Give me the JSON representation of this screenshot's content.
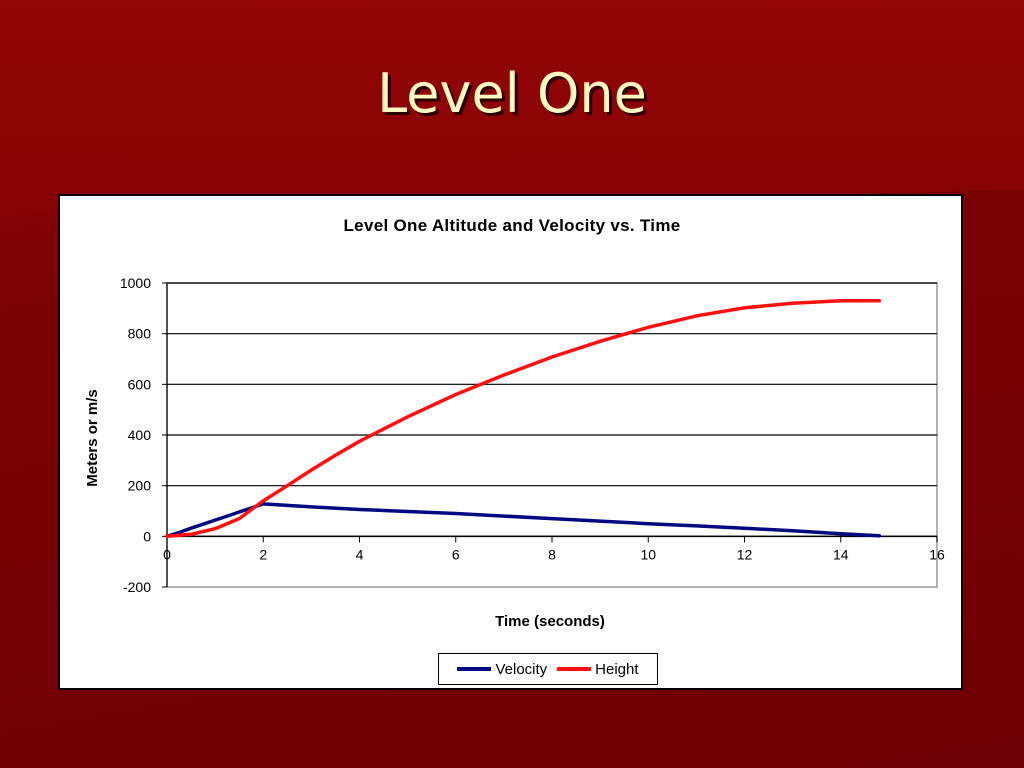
{
  "slide": {
    "title": "Level One"
  },
  "colors": {
    "velocity": "#000a80",
    "height": "#ff1010",
    "background": "#800204",
    "title_text": "#fff7c0"
  },
  "chart_data": {
    "type": "line",
    "title": "Level One Altitude and Velocity vs. Time",
    "xlabel": "Time (seconds)",
    "ylabel": "Meters or m/s",
    "xlim": [
      0,
      16
    ],
    "ylim": [
      -200,
      1000
    ],
    "xticks": [
      0,
      2,
      4,
      6,
      8,
      10,
      12,
      14,
      16
    ],
    "xtick_labels": [
      "0",
      "2",
      "4",
      "6",
      "8",
      "10",
      "12",
      "14",
      "16"
    ],
    "yticks": [
      -200,
      0,
      200,
      400,
      600,
      800,
      1000
    ],
    "ytick_labels": [
      "-200",
      "0",
      "200",
      "400",
      "600",
      "800",
      "1000"
    ],
    "grid": "horizontal",
    "legend_position": "bottom-center",
    "series": [
      {
        "name": "Velocity",
        "color": "#000a80",
        "x": [
          0,
          0.25,
          0.5,
          0.75,
          1.0,
          1.25,
          1.5,
          1.75,
          2.0,
          2.5,
          3,
          4,
          5,
          6,
          7,
          8,
          9,
          10,
          11,
          12,
          13,
          14,
          14.8
        ],
        "y": [
          0,
          15,
          32,
          48,
          64,
          80,
          96,
          112,
          128,
          122,
          116,
          106,
          98,
          90,
          80,
          70,
          60,
          50,
          41,
          32,
          22,
          10,
          2
        ]
      },
      {
        "name": "Height",
        "color": "#ff1010",
        "x": [
          0,
          0.5,
          1.0,
          1.5,
          2.0,
          2.5,
          3,
          3.5,
          4,
          5,
          6,
          7,
          8,
          9,
          10,
          11,
          12,
          13,
          14,
          14.8
        ],
        "y": [
          0,
          8,
          30,
          70,
          140,
          200,
          262,
          320,
          375,
          472,
          560,
          637,
          708,
          770,
          825,
          870,
          902,
          920,
          930,
          930
        ]
      }
    ]
  }
}
